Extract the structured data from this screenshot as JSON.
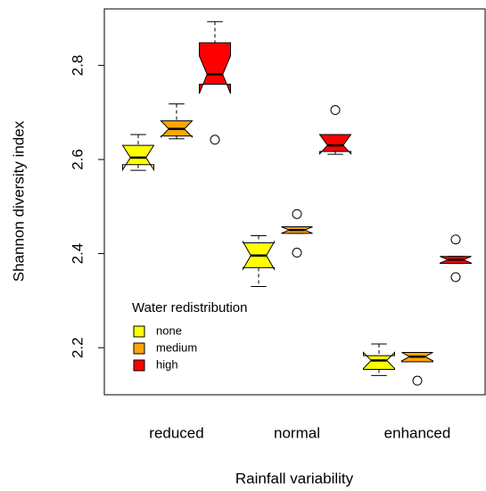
{
  "chart_data": {
    "type": "boxplot",
    "x_label": "Rainfall variability",
    "y_label": "Shannon diversity index",
    "categories": [
      "reduced",
      "normal",
      "enhanced"
    ],
    "legend_title": "Water redistribution",
    "legend_position": "bottom-left",
    "ylim": [
      2.1,
      2.92
    ],
    "yticks": [
      2.2,
      2.4,
      2.6,
      2.8
    ],
    "notched": true,
    "series": [
      {
        "name": "none",
        "color": "#ffff00",
        "whisker_high": [
          2.653,
          2.438,
          2.208
        ],
        "q3": [
          2.63,
          2.423,
          2.183
        ],
        "median": [
          2.604,
          2.396,
          2.173
        ],
        "q1": [
          2.589,
          2.37,
          2.154
        ],
        "whisker_low": [
          2.577,
          2.33,
          2.141
        ],
        "notch_high": [
          2.63,
          2.425,
          2.19
        ],
        "notch_low": [
          2.578,
          2.367,
          2.156
        ],
        "outliers": [
          [],
          [],
          []
        ]
      },
      {
        "name": "medium",
        "color": "#ffa500",
        "whisker_high": [
          2.718,
          2.457,
          2.19
        ],
        "q3": [
          2.682,
          2.457,
          2.19
        ],
        "median": [
          2.665,
          2.45,
          2.181
        ],
        "q1": [
          2.65,
          2.443,
          2.17
        ],
        "whisker_low": [
          2.644,
          2.443,
          2.17
        ],
        "notch_high": [
          2.682,
          2.457,
          2.19
        ],
        "notch_low": [
          2.648,
          2.443,
          2.172
        ],
        "outliers": [
          [],
          [
            2.484,
            2.402
          ],
          [
            2.13
          ]
        ]
      },
      {
        "name": "high",
        "color": "#ff0000",
        "whisker_high": [
          2.893,
          2.653,
          2.394
        ],
        "q3": [
          2.848,
          2.653,
          2.394
        ],
        "median": [
          2.781,
          2.63,
          2.387
        ],
        "q1": [
          2.76,
          2.617,
          2.379
        ],
        "whisker_low": [
          2.76,
          2.611,
          2.379
        ],
        "notch_high": [
          2.82,
          2.653,
          2.394
        ],
        "notch_low": [
          2.74,
          2.612,
          2.38
        ],
        "outliers": [
          [
            2.642
          ],
          [
            2.705
          ],
          [
            2.43,
            2.35
          ]
        ]
      }
    ]
  }
}
